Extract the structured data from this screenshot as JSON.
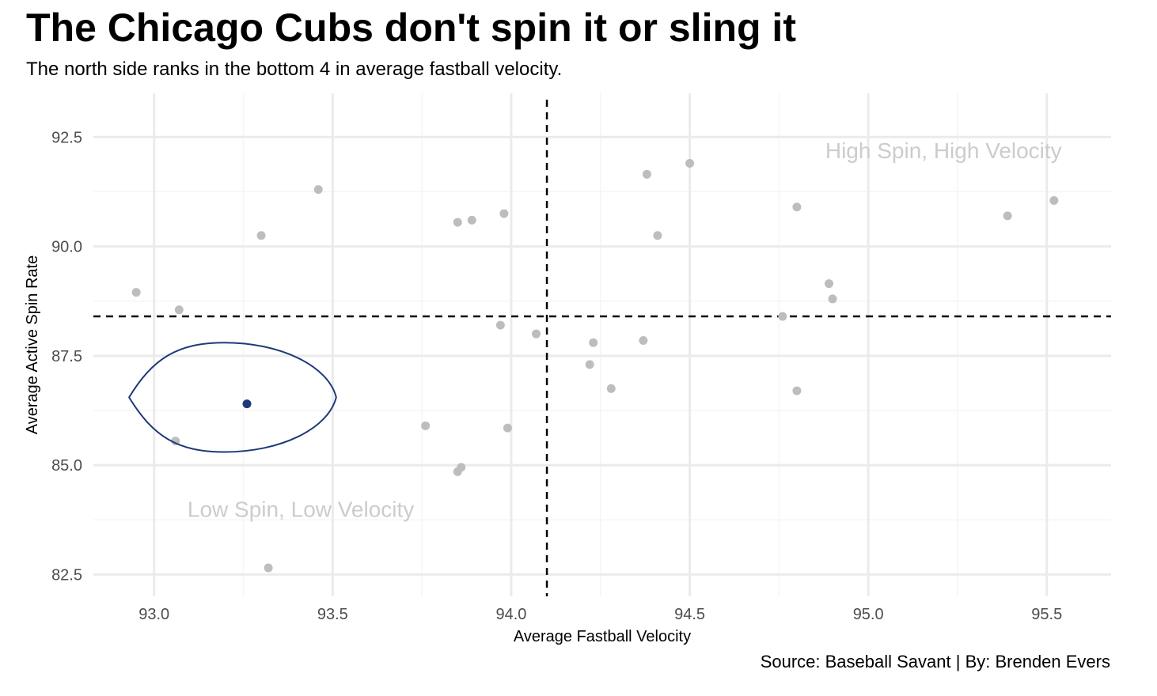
{
  "header": {
    "title": "The Chicago Cubs don't spin it or sling it",
    "subtitle": "The north side ranks in the bottom 4 in average fastball velocity."
  },
  "caption": "Source: Baseball Savant | By: Brenden Evers",
  "chart_data": {
    "type": "scatter",
    "xlabel": "Average Fastball Velocity",
    "ylabel": "Average Active Spin Rate",
    "xlim": [
      92.83,
      95.68
    ],
    "ylim": [
      82.0,
      93.5
    ],
    "xticks": [
      93.0,
      93.5,
      94.0,
      94.5,
      95.0,
      95.5
    ],
    "xtick_labels": [
      "93.0",
      "93.5",
      "94.0",
      "94.5",
      "95.0",
      "95.5"
    ],
    "yticks": [
      82.5,
      85.0,
      87.5,
      90.0,
      92.5
    ],
    "ytick_labels": [
      "82.5",
      "85.0",
      "87.5",
      "90.0",
      "92.5"
    ],
    "grid": true,
    "reference_lines": {
      "vertical_x": 94.1,
      "horizontal_y": 88.4
    },
    "annotations": [
      {
        "text": "High Spin, High Velocity",
        "x": 95.1,
        "y": 92.2
      },
      {
        "text": "Low Spin, Low Velocity",
        "x": 93.3,
        "y": 84.0
      }
    ],
    "highlight": {
      "x": 93.26,
      "y": 86.4,
      "color": "#1f3a7a",
      "ellipse": {
        "x_range": [
          92.93,
          93.51
        ],
        "y_range": [
          85.3,
          87.8
        ]
      }
    },
    "colors": {
      "point": "#bdbdbd",
      "highlight": "#1f3a7a",
      "grid": "#ebebeb",
      "annotation": "#cccccc",
      "reference": "#000000"
    },
    "points": [
      {
        "x": 92.95,
        "y": 88.95
      },
      {
        "x": 93.07,
        "y": 88.55
      },
      {
        "x": 93.06,
        "y": 85.55
      },
      {
        "x": 93.3,
        "y": 90.25
      },
      {
        "x": 93.32,
        "y": 82.65
      },
      {
        "x": 93.46,
        "y": 91.3
      },
      {
        "x": 93.76,
        "y": 85.9
      },
      {
        "x": 93.85,
        "y": 90.55
      },
      {
        "x": 93.89,
        "y": 90.6
      },
      {
        "x": 93.85,
        "y": 84.85
      },
      {
        "x": 93.86,
        "y": 84.95
      },
      {
        "x": 93.98,
        "y": 90.75
      },
      {
        "x": 93.97,
        "y": 88.2
      },
      {
        "x": 93.99,
        "y": 85.85
      },
      {
        "x": 94.07,
        "y": 88.0
      },
      {
        "x": 94.22,
        "y": 87.3
      },
      {
        "x": 94.23,
        "y": 87.8
      },
      {
        "x": 94.28,
        "y": 86.75
      },
      {
        "x": 94.37,
        "y": 87.85
      },
      {
        "x": 94.38,
        "y": 91.65
      },
      {
        "x": 94.41,
        "y": 90.25
      },
      {
        "x": 94.5,
        "y": 91.9
      },
      {
        "x": 94.76,
        "y": 88.4
      },
      {
        "x": 94.8,
        "y": 90.9
      },
      {
        "x": 94.8,
        "y": 86.7
      },
      {
        "x": 94.89,
        "y": 89.15
      },
      {
        "x": 94.9,
        "y": 88.8
      },
      {
        "x": 95.39,
        "y": 90.7
      },
      {
        "x": 95.52,
        "y": 91.05
      }
    ]
  }
}
